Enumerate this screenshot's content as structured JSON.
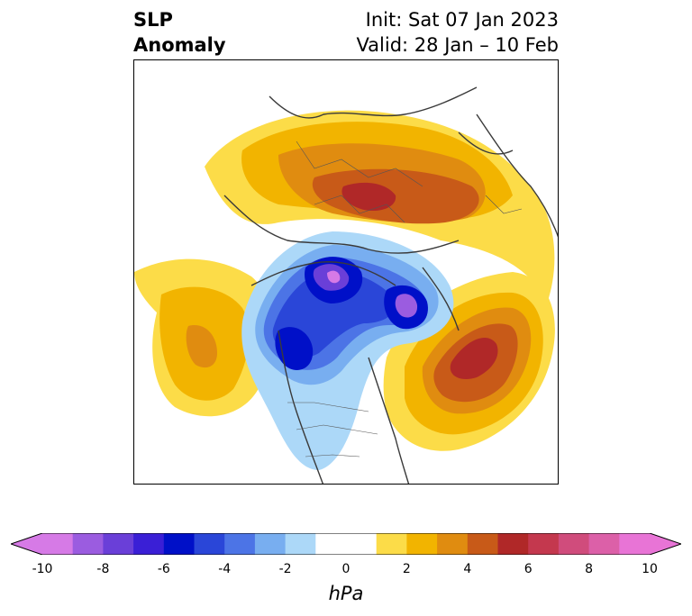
{
  "title": {
    "left_line1": "SLP",
    "left_line2": "Anomaly",
    "init": "Init: Sat 07 Jan 2023",
    "valid": "Valid: 28 Jan – 10 Feb"
  },
  "colorbar": {
    "units": "hPa",
    "ticks": [
      "-10",
      "-8",
      "-6",
      "-4",
      "-2",
      "0",
      "2",
      "4",
      "6",
      "8",
      "10"
    ],
    "colors": [
      "#d67ae6",
      "#9b5ce0",
      "#6a3fd8",
      "#3a1fd6",
      "#0010c8",
      "#2a46d8",
      "#4c74e6",
      "#78aef0",
      "#acd8f8",
      "#ffffff",
      "#ffffff",
      "#fcdc48",
      "#f2b400",
      "#e08c10",
      "#c85a18",
      "#b02828",
      "#c4384e",
      "#d04c7c",
      "#dc60a8",
      "#e874d6"
    ]
  },
  "map": {
    "projection": "North Polar Stereographic",
    "features": [
      "SLP anomaly shading",
      "coastlines",
      "country borders",
      "US state borders"
    ]
  }
}
